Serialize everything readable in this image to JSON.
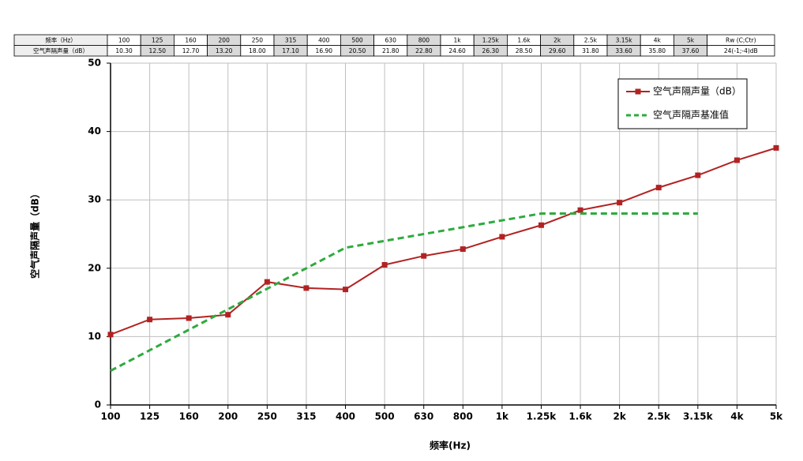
{
  "table": {
    "header": [
      "频率（Hz）",
      "100",
      "125",
      "160",
      "200",
      "250",
      "315",
      "400",
      "500",
      "630",
      "800",
      "1k",
      "1.25k",
      "1.6k",
      "2k",
      "2.5k",
      "3.15k",
      "4k",
      "5k",
      "Rw (C;Ctr)"
    ],
    "rows": [
      [
        "空气声隔声量（dB）",
        "10.30",
        "12.50",
        "12.70",
        "13.20",
        "18.00",
        "17.10",
        "16.90",
        "20.50",
        "21.80",
        "22.80",
        "24.60",
        "26.30",
        "28.50",
        "29.60",
        "31.80",
        "33.60",
        "35.80",
        "37.60",
        "24(-1;-4)dB"
      ]
    ]
  },
  "chart_data": {
    "type": "line",
    "x_label": "频率(Hz)",
    "y_label": "空气声隔声量（dB）",
    "categories": [
      "100",
      "125",
      "160",
      "200",
      "250",
      "315",
      "400",
      "500",
      "630",
      "800",
      "1k",
      "1.25k",
      "1.6k",
      "2k",
      "2.5k",
      "3.15k",
      "4k",
      "5k"
    ],
    "series": [
      {
        "name": "空气声隔声量（dB）",
        "color": "#b22222",
        "marker": "square",
        "dashed": false,
        "values": [
          10.3,
          12.5,
          12.7,
          13.2,
          18.0,
          17.1,
          16.9,
          20.5,
          21.8,
          22.8,
          24.6,
          26.3,
          28.5,
          29.6,
          31.8,
          33.6,
          35.8,
          37.6
        ]
      },
      {
        "name": "空气声隔声基准值",
        "color": "#2eaa3e",
        "marker": "none",
        "dashed": true,
        "values": [
          5,
          8,
          11,
          14,
          17,
          20,
          23,
          24,
          25,
          26,
          27,
          28,
          28,
          28,
          28,
          28,
          null,
          null
        ]
      }
    ],
    "ylim": [
      0,
      50
    ],
    "yticks": [
      0,
      10,
      20,
      30,
      40,
      50
    ],
    "grid": true,
    "legend": "top-right"
  }
}
